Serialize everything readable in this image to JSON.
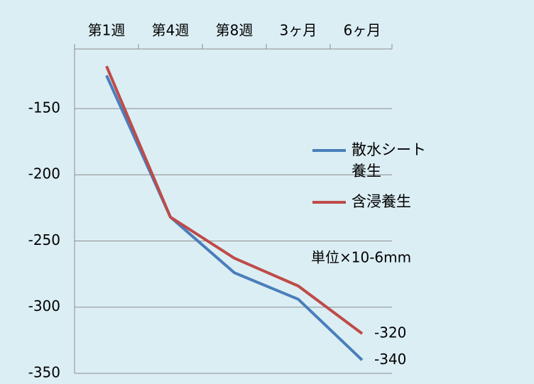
{
  "chart_data": {
    "type": "line",
    "categories": [
      "第1週",
      "第4週",
      "第8週",
      "3ヶ月",
      "6ヶ月"
    ],
    "series": [
      {
        "name": "散水シート養生",
        "color": "#4a7ebb",
        "values": [
          -125,
          -232,
          -274,
          -294,
          -340
        ],
        "value_labels": [
          null,
          null,
          null,
          null,
          "-340"
        ]
      },
      {
        "name": "含浸養生",
        "color": "#be4b48",
        "values": [
          -118,
          -232,
          -263,
          -284,
          -320
        ],
        "value_labels": [
          null,
          null,
          null,
          null,
          "-320"
        ]
      }
    ],
    "ylim": [
      -350,
      -105
    ],
    "yticks": [
      -350,
      -300,
      -250,
      -200,
      -150
    ],
    "grid": true,
    "annotation": "単位×10-6mm",
    "legend": "right"
  }
}
